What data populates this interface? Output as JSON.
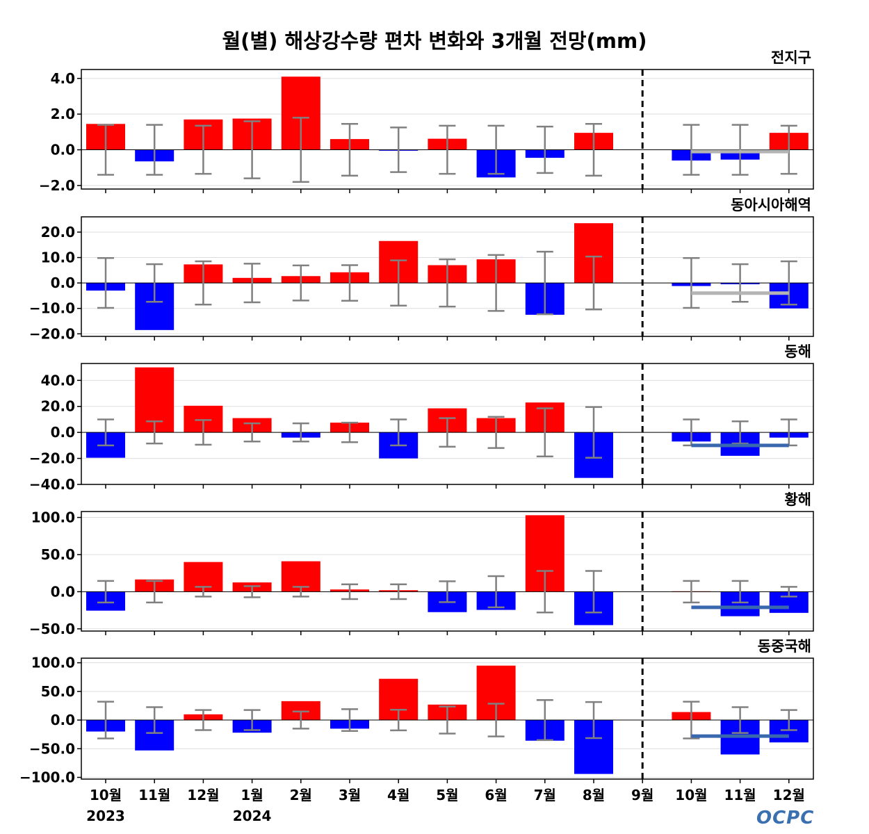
{
  "title": "월(별) 해상강수량 편차 변화와 3개월 전망(mm)",
  "logo_text": "OCPC",
  "colors": {
    "positive": "#ff0000",
    "negative": "#0000ff",
    "errorbar": "#808080",
    "grid": "#dddddd",
    "divider": "#000000",
    "outlook_gray": "#b4b4b4",
    "outlook_blue": "#3a68ae"
  },
  "chart_data": {
    "categories": [
      "10월",
      "11월",
      "12월",
      "1월",
      "2월",
      "3월",
      "4월",
      "5월",
      "6월",
      "7월",
      "8월",
      "9월",
      "10월",
      "11월",
      "12월"
    ],
    "year_labels": [
      {
        "index": 0,
        "label": "2023"
      },
      {
        "index": 3,
        "label": "2024"
      }
    ],
    "forecast_divider_index": 11,
    "panels": [
      {
        "type": "bar",
        "title": "전지구",
        "ylim": [
          -2.2,
          4.5
        ],
        "yticks": [
          -2.0,
          0.0,
          2.0,
          4.0
        ],
        "tick_labels": [
          "−2.0",
          "0.0",
          "2.0",
          "4.0"
        ],
        "values": [
          1.45,
          -0.65,
          1.7,
          1.75,
          4.1,
          0.6,
          -0.05,
          0.62,
          -1.55,
          -0.45,
          0.95,
          null,
          -0.6,
          -0.55,
          0.95
        ],
        "error_bars": [
          1.4,
          1.4,
          1.35,
          1.6,
          1.8,
          1.45,
          1.25,
          1.35,
          1.35,
          1.3,
          1.45,
          0.0,
          1.4,
          1.4,
          1.35
        ],
        "outlook": {
          "value": -0.1,
          "color": "gray"
        }
      },
      {
        "type": "bar",
        "title": "동아시아해역",
        "ylim": [
          -21,
          26
        ],
        "yticks": [
          -20,
          -10,
          0,
          10,
          20
        ],
        "tick_labels": [
          "−20.0",
          "−10.0",
          "0.0",
          "10.0",
          "20.0"
        ],
        "values": [
          -3.0,
          -18.5,
          7.3,
          2.0,
          2.7,
          4.2,
          16.5,
          7.0,
          9.3,
          -12.5,
          23.5,
          null,
          -1.2,
          -0.5,
          -10.0
        ],
        "error_bars": [
          9.8,
          7.4,
          8.5,
          7.6,
          6.9,
          7.0,
          8.9,
          9.3,
          11.0,
          12.3,
          10.4,
          0.0,
          9.8,
          7.4,
          8.5
        ],
        "outlook": {
          "value": -4.0,
          "color": "gray"
        }
      },
      {
        "type": "bar",
        "title": "동해",
        "ylim": [
          -40,
          53
        ],
        "yticks": [
          -40,
          -20,
          0,
          20,
          40
        ],
        "tick_labels": [
          "−40.0",
          "−20.0",
          "0.0",
          "20.0",
          "40.0"
        ],
        "values": [
          -19.5,
          50.0,
          20.5,
          11.0,
          -4.0,
          7.5,
          -20.0,
          18.5,
          11.0,
          23.0,
          -35.0,
          null,
          -7.0,
          -18.0,
          -4.0
        ],
        "error_bars": [
          10.0,
          8.5,
          9.5,
          7.0,
          7.0,
          7.5,
          10.0,
          11.0,
          12.0,
          18.5,
          19.5,
          0.0,
          10.0,
          8.5,
          10.0
        ],
        "outlook": {
          "value": -10.0,
          "color": "blue"
        }
      },
      {
        "type": "bar",
        "title": "황해",
        "ylim": [
          -53,
          108
        ],
        "yticks": [
          -50,
          0,
          50,
          100
        ],
        "tick_labels": [
          "−50.0",
          "0.0",
          "50.0",
          "100.0"
        ],
        "values": [
          -25.5,
          16.5,
          40.0,
          12.5,
          41.0,
          3.0,
          2.0,
          -27.5,
          -24.5,
          103.0,
          -45.0,
          null,
          0.5,
          -33.0,
          -28.5
        ],
        "error_bars": [
          14.5,
          14.5,
          6.5,
          7.5,
          6.5,
          10.0,
          10.0,
          14.0,
          21.0,
          28.0,
          28.0,
          0.0,
          14.5,
          14.5,
          6.5
        ],
        "outlook": {
          "value": -21.0,
          "color": "blue"
        }
      },
      {
        "type": "bar",
        "title": "동중국해",
        "ylim": [
          -103,
          108
        ],
        "yticks": [
          -100,
          -50,
          0,
          50,
          100
        ],
        "tick_labels": [
          "−100.0",
          "−50.0",
          "0.0",
          "50.0",
          "100.0"
        ],
        "values": [
          -20.0,
          -53.0,
          10.0,
          -22.0,
          33.0,
          -15.0,
          72.0,
          27.0,
          95.0,
          -36.0,
          -94.0,
          null,
          14.0,
          -60.0,
          -39.0
        ],
        "error_bars": [
          32.0,
          22.5,
          17.5,
          17.5,
          15.0,
          19.0,
          18.0,
          23.5,
          28.5,
          35.0,
          31.5,
          0.0,
          32.0,
          22.5,
          17.5
        ],
        "outlook": {
          "value": -28.0,
          "color": "blue"
        }
      }
    ]
  }
}
